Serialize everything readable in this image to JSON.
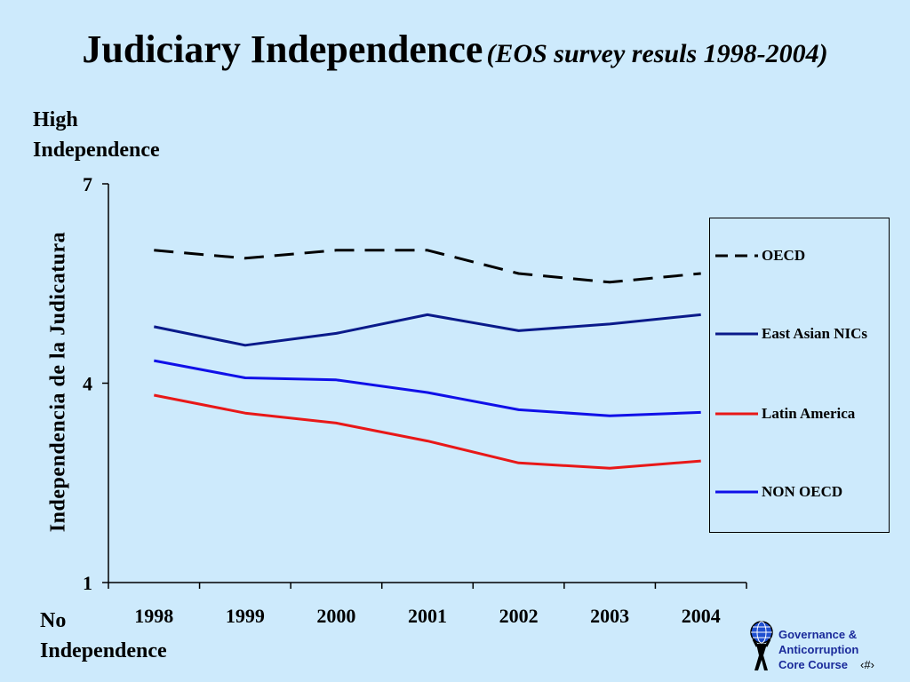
{
  "title": {
    "main": "Judiciary Independence",
    "sub": "(EOS survey resuls 1998-2004)"
  },
  "labels": {
    "high_line1": "High",
    "high_line2": "Independence",
    "low_line1": "No",
    "low_line2": "Independence"
  },
  "footer": {
    "logo_line1": "Governance &",
    "logo_line2": "Anticorruption",
    "logo_line3": "Core Course",
    "page_number": "‹#›",
    "logo_icon": "globe-figure-icon"
  },
  "chart_data": {
    "type": "line",
    "title": "Judiciary Independence (EOS survey resuls 1998-2004)",
    "ylabel": "Independencia de la Judicatura",
    "xlabel": "",
    "x": [
      "1998",
      "1999",
      "2000",
      "2001",
      "2002",
      "2003",
      "2004"
    ],
    "ylim": [
      1,
      7
    ],
    "yticks": [
      "1",
      "4",
      "7"
    ],
    "grid": false,
    "legend_position": "right",
    "series": [
      {
        "name": "OECD",
        "values": [
          6.0,
          5.88,
          6.0,
          6.0,
          5.65,
          5.52,
          5.65
        ],
        "color": "#000000",
        "style": "dashed"
      },
      {
        "name": "East Asian NICs",
        "values": [
          4.85,
          4.57,
          4.75,
          5.03,
          4.79,
          4.89,
          5.03
        ],
        "color": "#0a1a8a",
        "style": "solid"
      },
      {
        "name": "Latin America",
        "values": [
          3.82,
          3.55,
          3.4,
          3.13,
          2.8,
          2.72,
          2.83
        ],
        "color": "#e81818",
        "style": "solid"
      },
      {
        "name": "NON OECD",
        "values": [
          4.34,
          4.08,
          4.05,
          3.86,
          3.6,
          3.51,
          3.56
        ],
        "color": "#1010e8",
        "style": "solid"
      }
    ]
  }
}
